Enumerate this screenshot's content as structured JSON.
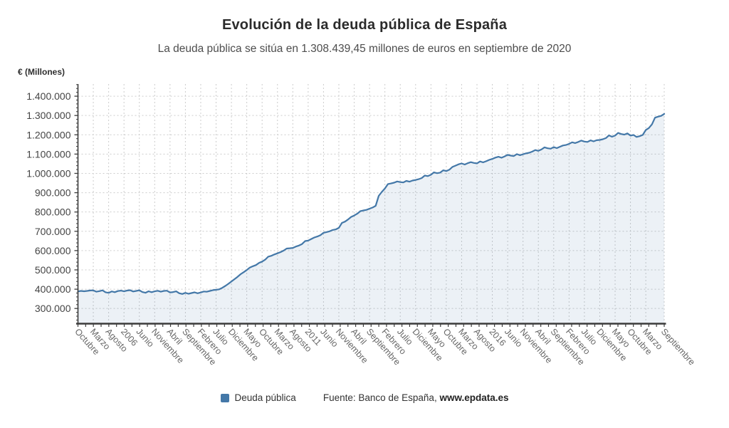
{
  "chart_data": {
    "type": "area",
    "title": "Evolución de la deuda pública de España",
    "subtitle": "La deuda pública se sitúa en 1.308.439,45 millones de euros en septiembre de 2020",
    "y_axis_title": "€ (Millones)",
    "legend_position": "bottom-center",
    "grid": "dashed-both-axes",
    "ylim": [
      225000,
      1463000
    ],
    "y_ticks": [
      {
        "value": 300000,
        "label": "300.000"
      },
      {
        "value": 400000,
        "label": "400.000"
      },
      {
        "value": 500000,
        "label": "500.000"
      },
      {
        "value": 600000,
        "label": "600.000"
      },
      {
        "value": 700000,
        "label": "700.000"
      },
      {
        "value": 800000,
        "label": "800.000"
      },
      {
        "value": 900000,
        "label": "900.000"
      },
      {
        "value": 1000000,
        "label": "1.000.000"
      },
      {
        "value": 1100000,
        "label": "1.100.000"
      },
      {
        "value": 1200000,
        "label": "1.200.000"
      },
      {
        "value": 1300000,
        "label": "1.300.000"
      },
      {
        "value": 1400000,
        "label": "1.400.000"
      }
    ],
    "x_labels": [
      "Octubre",
      "Marzo",
      "Agosto",
      "2006",
      "Junio",
      "Noviembre",
      "Abril",
      "Septiembre",
      "Febrero",
      "Julio",
      "Diciembre",
      "Mayo",
      "Octubre",
      "Marzo",
      "Agosto",
      "2011",
      "Junio",
      "Noviembre",
      "Abril",
      "Septiembre",
      "Febrero",
      "Julio",
      "Diciembre",
      "Mayo",
      "Octubre",
      "Marzo",
      "Agosto",
      "2016",
      "Junio",
      "Noviembre",
      "Abril",
      "Septiembre",
      "Febrero",
      "Julio",
      "Diciembre",
      "Mayo",
      "Octubre",
      "Marzo",
      "Septiembre"
    ],
    "x_label_indices": [
      0,
      5,
      10,
      15,
      20,
      25,
      30,
      35,
      40,
      45,
      50,
      55,
      60,
      65,
      70,
      75,
      80,
      85,
      90,
      95,
      100,
      105,
      110,
      115,
      120,
      125,
      130,
      135,
      140,
      145,
      150,
      155,
      160,
      165,
      170,
      175,
      180,
      185,
      191
    ],
    "series": [
      {
        "name": "Deuda pública",
        "color": "#4478a8",
        "fill": "rgba(70,120,168,0.10)",
        "values": [
          388400,
          391200,
          389100,
          391000,
          393200,
          394100,
          387000,
          390100,
          393900,
          384200,
          381000,
          388300,
          384400,
          390200,
          392500,
          389000,
          392800,
          394800,
          388000,
          391000,
          394300,
          385000,
          381400,
          389200,
          384300,
          389000,
          391900,
          387000,
          391000,
          392300,
          383000,
          385300,
          389000,
          379000,
          375200,
          381000,
          376300,
          380000,
          383800,
          379000,
          383000,
          388000,
          387000,
          391000,
          395200,
          397000,
          399300,
          407000,
          417000,
          428000,
          439800,
          452000,
          464000,
          477600,
          488000,
          499000,
          512000,
          519000,
          525000,
          536600,
          543000,
          553000,
          568700,
          573000,
          580000,
          585900,
          592000,
          600000,
          610600,
          612000,
          614000,
          620900,
          626000,
          634000,
          649300,
          652000,
          660000,
          667800,
          673000,
          680000,
          692000,
          696000,
          700000,
          706800,
          710000,
          718000,
          743500,
          750000,
          761000,
          774500,
          782000,
          791000,
          804400,
          808000,
          811000,
          817200,
          823000,
          832000,
          883800,
          904000,
          922000,
          945000,
          948000,
          952000,
          958300,
          955000,
          953000,
          961300,
          957000,
          963000,
          966000,
          970000,
          976000,
          988900,
          986000,
          993000,
          1005400,
          1001000,
          1004000,
          1016200,
          1012000,
          1019000,
          1033300,
          1040000,
          1047000,
          1051600,
          1046000,
          1053000,
          1058300,
          1054000,
          1052000,
          1062000,
          1057000,
          1063000,
          1070100,
          1075000,
          1082000,
          1086200,
          1081000,
          1088000,
          1096100,
          1092000,
          1090000,
          1100000,
          1094000,
          1099000,
          1104100,
          1107000,
          1113000,
          1120800,
          1117000,
          1124000,
          1135100,
          1130000,
          1128000,
          1135900,
          1131000,
          1138000,
          1144600,
          1147000,
          1153000,
          1161100,
          1157000,
          1163000,
          1170100,
          1165000,
          1163000,
          1171000,
          1166000,
          1172000,
          1173400,
          1177000,
          1183000,
          1197100,
          1190000,
          1196000,
          1210000,
          1204000,
          1201000,
          1207400,
          1196000,
          1199000,
          1188900,
          1193000,
          1199000,
          1224500,
          1235000,
          1254000,
          1289000,
          1294000,
          1298000,
          1308439
        ]
      }
    ],
    "source_prefix": "Fuente: Banco de España, ",
    "source_link": "www.epdata.es"
  },
  "legend": {
    "label": "Deuda pública"
  }
}
